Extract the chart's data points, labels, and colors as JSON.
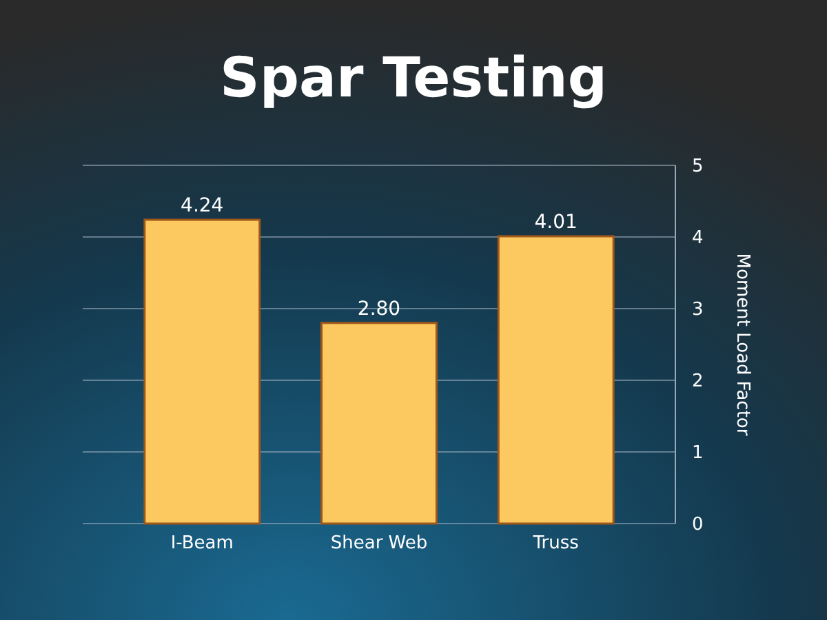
{
  "chart_data": {
    "type": "bar",
    "title": "Spar Testing",
    "ylabel": "Moment Load Factor",
    "categories": [
      "I-Beam",
      "Shear Web",
      "Truss"
    ],
    "values": [
      4.24,
      2.8,
      4.01
    ],
    "value_labels": [
      "4.24",
      "2.80",
      "4.01"
    ],
    "color": "#fcc860",
    "ylim": [
      0,
      5
    ],
    "yticks": [
      0,
      1,
      2,
      3,
      4,
      5
    ],
    "grid": "y"
  }
}
